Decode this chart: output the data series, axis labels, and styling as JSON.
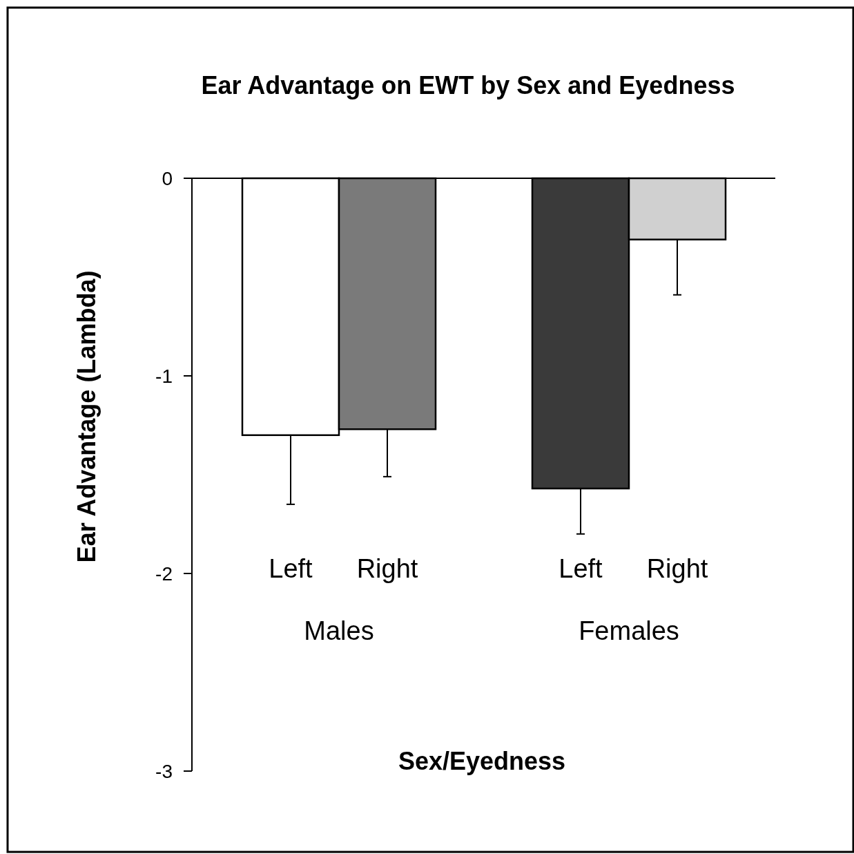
{
  "chart_data": {
    "type": "bar",
    "title": "Ear Advantage on EWT by Sex and Eyedness",
    "xlabel": "Sex/Eyedness",
    "ylabel": "Ear Advantage (Lambda)",
    "categories": [
      "Left",
      "Right",
      "Left",
      "Right"
    ],
    "values": [
      -1.3,
      -1.27,
      -1.57,
      -0.31
    ],
    "colors": [
      "#ffffff",
      "#7a7a7a",
      "#3a3a3a",
      "#d0d0d0"
    ],
    "errors": [
      [
        -1.65,
        -1.3
      ],
      [
        -1.51,
        -1.27
      ],
      [
        -1.8,
        -1.57
      ],
      [
        -0.59,
        -0.31
      ]
    ],
    "annotations": [
      "Males",
      "Females"
    ],
    "ylim": [
      -3,
      0
    ],
    "yticks": [
      -3,
      -2,
      -1,
      0
    ]
  }
}
